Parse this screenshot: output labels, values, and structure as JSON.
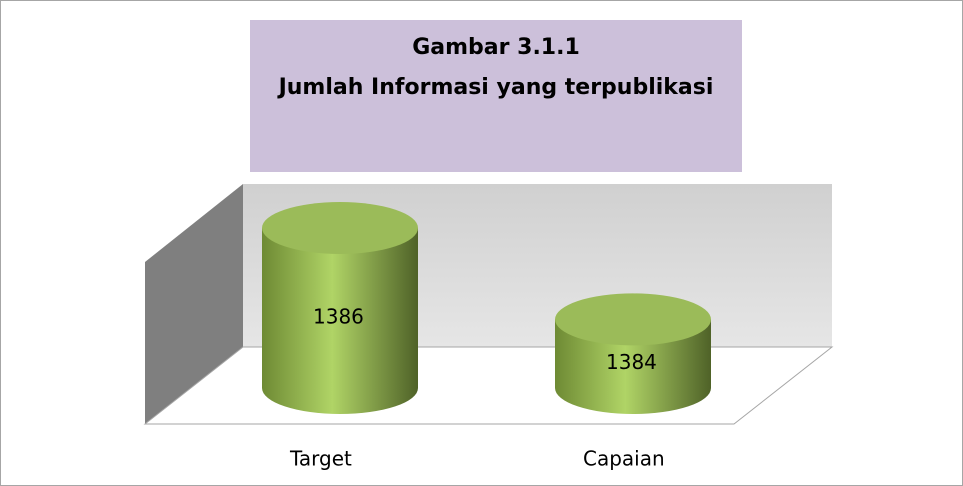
{
  "chart_data": {
    "type": "cylinder",
    "title": "Gambar 3.1.1",
    "subtitle": "Jumlah Informasi yang terpublikasi",
    "categories": [
      "Target",
      "Capaian"
    ],
    "values": [
      1386,
      1384
    ],
    "color": "#9bbb59",
    "ylim": [
      1382.5,
      1386.5
    ]
  }
}
